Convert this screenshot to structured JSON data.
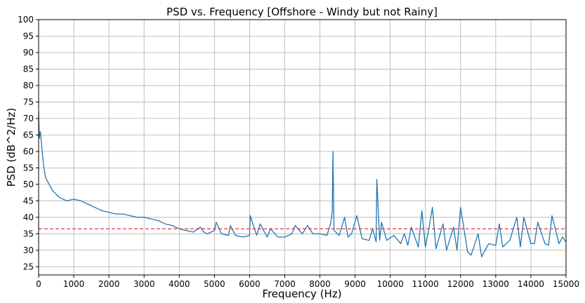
{
  "chart_data": {
    "type": "line",
    "title": "PSD vs. Frequency [Offshore - Windy but not Rainy]",
    "xlabel": "Frequency (Hz)",
    "ylabel": "PSD (dB^2/Hz)",
    "xlim": [
      0,
      15000
    ],
    "ylim": [
      22.5,
      100
    ],
    "x_ticks": [
      0,
      1000,
      2000,
      3000,
      4000,
      5000,
      6000,
      7000,
      8000,
      9000,
      10000,
      11000,
      12000,
      13000,
      14000,
      15000
    ],
    "y_ticks": [
      25,
      30,
      35,
      40,
      45,
      50,
      55,
      60,
      65,
      70,
      75,
      80,
      85,
      90,
      95,
      100
    ],
    "grid": true,
    "colors": {
      "series": "#1f77b4",
      "threshold": "#d62728",
      "grid": "#b0b0b0"
    },
    "series": [
      {
        "style": "solid",
        "x": [
          0,
          20,
          50,
          100,
          150,
          200,
          300,
          400,
          500,
          600,
          700,
          800,
          1000,
          1200,
          1400,
          1600,
          1800,
          2000,
          2200,
          2400,
          2600,
          2800,
          3000,
          3200,
          3400,
          3600,
          3800,
          4000,
          4200,
          4400,
          4600,
          4700,
          4800,
          5000,
          5050,
          5200,
          5400,
          5450,
          5600,
          5800,
          6000,
          6020,
          6200,
          6300,
          6500,
          6600,
          6800,
          7000,
          7200,
          7300,
          7500,
          7650,
          7800,
          8000,
          8200,
          8300,
          8350,
          8370,
          8400,
          8550,
          8700,
          8800,
          8900,
          9050,
          9200,
          9400,
          9500,
          9600,
          9620,
          9700,
          9750,
          9900,
          10100,
          10300,
          10400,
          10500,
          10600,
          10800,
          10900,
          11000,
          11100,
          11200,
          11300,
          11500,
          11600,
          11800,
          11900,
          12000,
          12200,
          12300,
          12500,
          12600,
          12800,
          13000,
          13100,
          13200,
          13400,
          13600,
          13700,
          13800,
          14000,
          14100,
          14200,
          14400,
          14500,
          14600,
          14800,
          14900,
          15000
        ],
        "values": [
          72,
          64,
          66,
          60,
          55,
          52,
          50,
          48,
          47,
          46,
          45.5,
          45,
          45.5,
          45,
          44,
          43,
          42,
          41.5,
          41,
          41,
          40.5,
          40,
          40,
          39.5,
          39,
          38,
          37.5,
          36.5,
          36,
          35.5,
          37,
          35.5,
          35,
          36,
          38.5,
          35,
          34.5,
          37.5,
          34.5,
          34,
          34.5,
          40.5,
          34.5,
          38,
          34,
          36.5,
          34,
          34,
          35,
          37.5,
          35,
          37.5,
          35,
          35,
          34.5,
          38,
          41.5,
          60,
          36,
          34.5,
          40,
          34,
          35,
          40.5,
          33.5,
          33,
          36.5,
          32.5,
          51.5,
          33,
          38.5,
          33,
          34.5,
          32,
          35,
          31.5,
          37,
          31,
          42,
          31,
          36.5,
          43,
          30.5,
          38,
          30,
          37,
          30,
          43,
          29.5,
          28.5,
          35,
          28,
          32,
          31.5,
          38,
          31,
          33,
          40,
          31,
          40,
          32,
          32,
          38.5,
          32,
          31.5,
          40.5,
          32,
          34,
          32.5
        ]
      },
      {
        "style": "dashed",
        "x": [
          0,
          15000
        ],
        "values": [
          36.5,
          36.5
        ]
      }
    ]
  }
}
